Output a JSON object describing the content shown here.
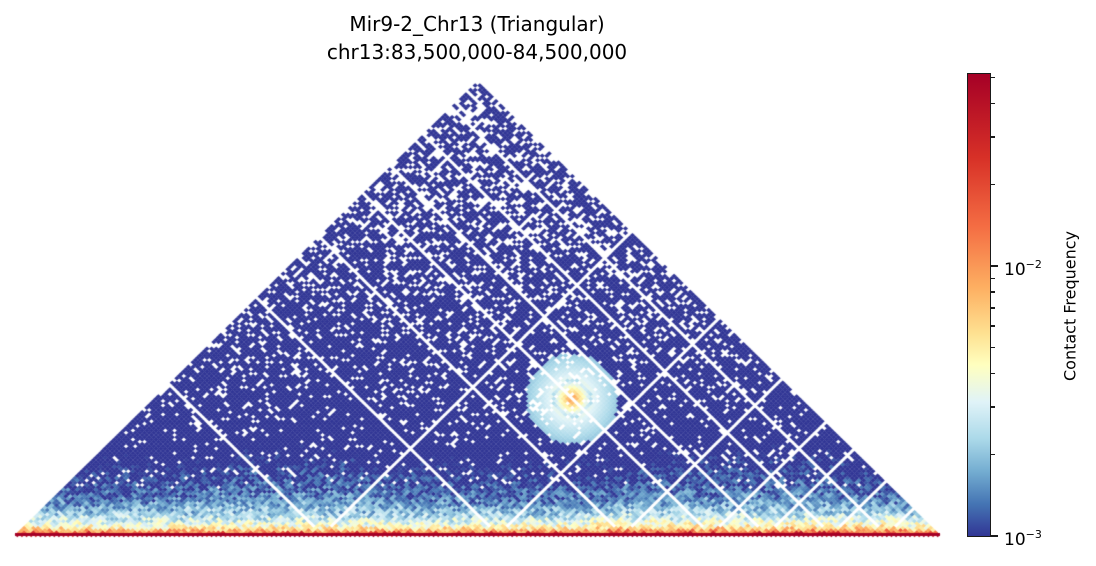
{
  "chart": {
    "title_line1": "Mir9-2_Chr13 (Triangular)",
    "title_line2": "chr13:83,500,000-84,500,000",
    "colorbar": {
      "label": "Contact Frequency",
      "scale": "log",
      "colormap": "RdYlBu_r",
      "ticks": [
        {
          "base": "10",
          "exp": "−2",
          "value": 0.01
        },
        {
          "base": "10",
          "exp": "−3",
          "value": 0.001
        }
      ],
      "range": [
        0.001,
        0.045
      ],
      "colors": [
        "#313695",
        "#4575b4",
        "#74add1",
        "#abd9e9",
        "#e0f3f8",
        "#ffffbf",
        "#fee090",
        "#fdae61",
        "#f46d43",
        "#d73027",
        "#a50026"
      ]
    }
  },
  "chart_data": {
    "type": "heatmap",
    "title": "Mir9-2_Chr13 (Triangular)",
    "subtitle": "chr13:83,500,000-84,500,000",
    "region": {
      "chrom": "chr13",
      "start": 83500000,
      "end": 84500000
    },
    "layout": "triangular (upper-triangle Hi-C contact map rotated 45°)",
    "colorbar_label": "Contact Frequency",
    "colorbar_scale": "log",
    "color_range": [
      0.001,
      0.045
    ],
    "colorbar_ticks": [
      "10^-3",
      "10^-2"
    ],
    "features": [
      {
        "description": "strong diagonal (near-distance contacts)",
        "value_approx": 0.04
      },
      {
        "description": "focal interaction hotspot near center-upper region",
        "value_approx": 0.015
      },
      {
        "description": "most distant contacts low / sparse",
        "value_approx": 0.001
      }
    ],
    "xlabel": "",
    "ylabel": "",
    "axes_visible": false
  }
}
